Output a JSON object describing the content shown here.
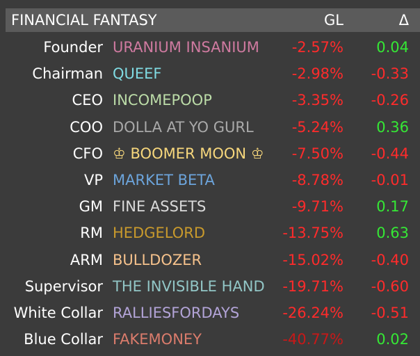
{
  "header": {
    "title": "FINANCIAL FANTASY",
    "gl": "GL",
    "delta": "Δ"
  },
  "table": {
    "rows": [
      {
        "rank": "Founder",
        "name": "URANIUM INSANIUM",
        "gl": "-2.57%",
        "delta": "0.04",
        "name_color": "#cf7aa0",
        "gl_color": "#ff2b2b",
        "delta_color": "#35e835"
      },
      {
        "rank": "Chairman",
        "name": "QUEEF",
        "gl": "-2.98%",
        "delta": "-0.33",
        "name_color": "#80dbe3",
        "gl_color": "#ff2b2b",
        "delta_color": "#ff2b2b"
      },
      {
        "rank": "CEO",
        "name": "INCOMEPOOP",
        "gl": "-3.35%",
        "delta": "-0.26",
        "name_color": "#bcdca8",
        "gl_color": "#ff2b2b",
        "delta_color": "#ff2b2b"
      },
      {
        "rank": "COO",
        "name": "DOLLA AT YO GURL",
        "gl": "-5.24%",
        "delta": "0.36",
        "name_color": "#a9a9a9",
        "gl_color": "#ff2b2b",
        "delta_color": "#35e835"
      },
      {
        "rank": "CFO",
        "name": "♔ BOOMER MOON ♔",
        "gl": "-7.50%",
        "delta": "-0.44",
        "name_color": "#f7d77c",
        "gl_color": "#ff2b2b",
        "delta_color": "#ff2b2b"
      },
      {
        "rank": "VP",
        "name": "MARKET BETA",
        "gl": "-8.78%",
        "delta": "-0.01",
        "name_color": "#6ca4db",
        "gl_color": "#ff2b2b",
        "delta_color": "#ff2b2b"
      },
      {
        "rank": "GM",
        "name": "FINE ASSETS",
        "gl": "-9.71%",
        "delta": "0.17",
        "name_color": "#dadada",
        "gl_color": "#ff2b2b",
        "delta_color": "#35e835"
      },
      {
        "rank": "RM",
        "name": "HEDGELORD",
        "gl": "-13.75%",
        "delta": "0.63",
        "name_color": "#c99a2c",
        "gl_color": "#ff2b2b",
        "delta_color": "#35e835"
      },
      {
        "rank": "ARM",
        "name": "BULLDOZER",
        "gl": "-15.02%",
        "delta": "-0.40",
        "name_color": "#f6c28c",
        "gl_color": "#ff2b2b",
        "delta_color": "#ff2b2b"
      },
      {
        "rank": "Supervisor",
        "name": "THE INVISIBLE HAND",
        "gl": "-19.71%",
        "delta": "-0.60",
        "name_color": "#92c6c6",
        "gl_color": "#ff2b2b",
        "delta_color": "#ff2b2b"
      },
      {
        "rank": "White Collar",
        "name": "RALLIESFORDAYS",
        "gl": "-26.24%",
        "delta": "-0.51",
        "name_color": "#b3a4d8",
        "gl_color": "#ff2b2b",
        "delta_color": "#ff2b2b"
      },
      {
        "rank": "Blue Collar",
        "name": "FAKEMONEY",
        "gl": "-40.77%",
        "delta": "0.02",
        "name_color": "#db7c6c",
        "gl_color": "#c81818",
        "delta_color": "#35e835"
      }
    ]
  }
}
